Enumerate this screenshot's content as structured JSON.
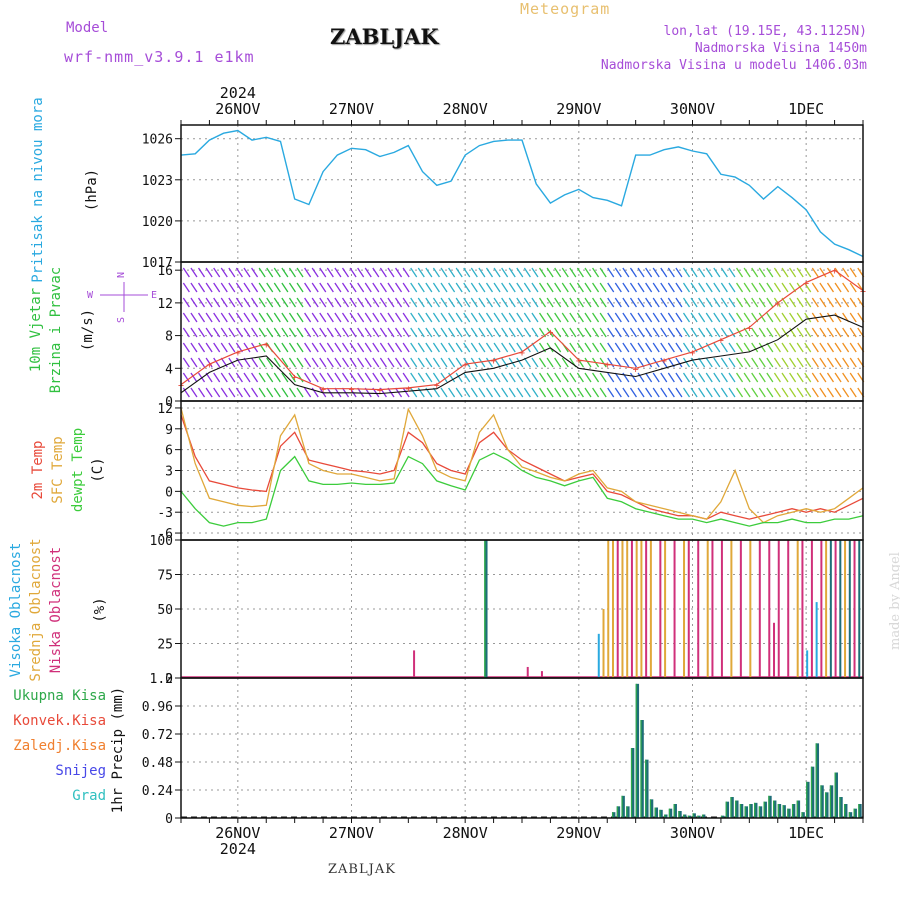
{
  "header": {
    "model_label": "Model",
    "model_name": "wrf-nmm_v3.9.1  e1km",
    "station_title": "ZABLJAK",
    "meteogram_label": "Meteogram",
    "lonlat": "lon,lat (19.15E, 43.1125N)",
    "elevation": "Nadmorska Visina 1450m",
    "elevation_model": "Nadmorska Visina u modelu 1406.03m",
    "footer_station": "ZABLJAK",
    "credit": "made by Angel"
  },
  "time_axis": {
    "top_year": "2024",
    "bottom_year": "2024",
    "day_labels": [
      "26NOV",
      "27NOV",
      "28NOV",
      "29NOV",
      "30NOV",
      "1DEC"
    ],
    "day_positions_hours": [
      12,
      36,
      60,
      84,
      108,
      132
    ],
    "range_hours": [
      0,
      144
    ]
  },
  "colors": {
    "pressure": "#2aa9e0",
    "temp2m": "#e84a3a",
    "sfc_temp": "#e0a83a",
    "dewpoint": "#3ccc3c",
    "high_cloud": "#2aa9e0",
    "mid_cloud": "#e0a83a",
    "low_cloud": "#d0307a",
    "total_precip": "#2ea84a",
    "conv_precip": "#e84a3a",
    "frozen_precip": "#f08030",
    "snow": "#4848e8",
    "graupel": "#30c0c0",
    "precip_bar": "#1e6e78",
    "gust": "#e84a3a",
    "wind_speed": "#111111"
  },
  "chart_data": [
    {
      "type": "line",
      "ylabel_title": "Pritisak na nivou mora",
      "ylabel_unit": "(hPa)",
      "ylim": [
        1017,
        1027
      ],
      "yticks": [
        1017,
        1020,
        1023,
        1026
      ],
      "grid": true,
      "series": [
        {
          "color_key": "pressure",
          "x": [
            0,
            3,
            6,
            9,
            12,
            15,
            18,
            21,
            24,
            27,
            30,
            33,
            36,
            39,
            42,
            45,
            48,
            51,
            54,
            57,
            60,
            63,
            66,
            69,
            72,
            75,
            78,
            81,
            84,
            87,
            90,
            93,
            96,
            99,
            102,
            105,
            108,
            111,
            114,
            117,
            120,
            123,
            126,
            129,
            132,
            135,
            138,
            141,
            144
          ],
          "values": [
            1024.8,
            1024.9,
            1025.9,
            1026.4,
            1026.6,
            1025.9,
            1026.1,
            1025.8,
            1021.6,
            1021.2,
            1023.6,
            1024.8,
            1025.3,
            1025.2,
            1024.7,
            1025.0,
            1025.5,
            1023.6,
            1022.6,
            1022.9,
            1024.8,
            1025.5,
            1025.8,
            1025.9,
            1025.9,
            1022.7,
            1021.3,
            1021.9,
            1022.3,
            1021.7,
            1021.5,
            1021.1,
            1024.8,
            1024.8,
            1025.2,
            1025.4,
            1025.1,
            1024.9,
            1023.4,
            1023.2,
            1022.6,
            1021.6,
            1022.5,
            1021.7,
            1020.8,
            1019.2,
            1018.3,
            1017.9,
            1017.4
          ]
        }
      ]
    },
    {
      "type": "line",
      "ylabel_title": "10m Vjetar",
      "ylabel_subtitle": "Brzina i Pravac",
      "ylabel_unit": "(m/s)",
      "direction_legend": [
        "N",
        "W",
        "E",
        "S"
      ],
      "ylim": [
        0,
        17
      ],
      "yticks": [
        0,
        4,
        8,
        12,
        16
      ],
      "grid": true,
      "series": [
        {
          "color_key": "gust",
          "x": [
            0,
            6,
            12,
            18,
            24,
            30,
            36,
            42,
            48,
            54,
            60,
            66,
            72,
            78,
            84,
            90,
            96,
            102,
            108,
            114,
            120,
            126,
            132,
            138,
            144
          ],
          "values": [
            2.0,
            4.5,
            6.0,
            7.0,
            3.0,
            1.5,
            1.5,
            1.4,
            1.6,
            2.0,
            4.5,
            5.0,
            6.0,
            8.5,
            5.0,
            4.5,
            4.0,
            5.0,
            6.0,
            7.5,
            9.0,
            12.0,
            14.5,
            16.0,
            13.5
          ]
        },
        {
          "color_key": "wind_speed",
          "x": [
            0,
            6,
            12,
            18,
            24,
            30,
            36,
            42,
            48,
            54,
            60,
            66,
            72,
            78,
            84,
            90,
            96,
            102,
            108,
            114,
            120,
            126,
            132,
            138,
            144
          ],
          "values": [
            1.0,
            3.5,
            5.0,
            5.5,
            2.0,
            1.0,
            1.0,
            0.9,
            1.2,
            1.5,
            3.5,
            4.0,
            5.0,
            6.5,
            4.0,
            3.5,
            3.0,
            4.0,
            5.0,
            5.5,
            6.0,
            7.5,
            10.0,
            10.5,
            9.0
          ]
        }
      ]
    },
    {
      "type": "line",
      "ylabel_lines": [
        "2m Temp",
        "SFC Temp",
        "dewpt Temp"
      ],
      "ylabel_unit": "(C)",
      "ylim": [
        -7,
        13
      ],
      "yticks": [
        -6,
        -3,
        0,
        3,
        6,
        9,
        12
      ],
      "grid": true,
      "series": [
        {
          "color_key": "temp2m",
          "x": [
            0,
            3,
            6,
            9,
            12,
            15,
            18,
            21,
            24,
            27,
            30,
            33,
            36,
            39,
            42,
            45,
            48,
            51,
            54,
            57,
            60,
            63,
            66,
            69,
            72,
            75,
            78,
            81,
            84,
            87,
            90,
            93,
            96,
            99,
            102,
            105,
            108,
            111,
            114,
            117,
            120,
            123,
            126,
            129,
            132,
            135,
            138,
            141,
            144
          ],
          "values": [
            11.0,
            5.0,
            1.5,
            1.0,
            0.5,
            0.2,
            0.0,
            6.5,
            8.5,
            4.5,
            4.0,
            3.5,
            3.0,
            2.8,
            2.5,
            3.0,
            8.5,
            7.0,
            4.0,
            3.0,
            2.5,
            7.0,
            8.5,
            6.0,
            4.5,
            3.5,
            2.5,
            1.5,
            2.0,
            2.5,
            0.0,
            -0.5,
            -1.5,
            -2.5,
            -3.0,
            -3.5,
            -3.5,
            -4.0,
            -3.0,
            -3.5,
            -4.0,
            -3.5,
            -3.0,
            -2.5,
            -3.0,
            -2.5,
            -3.0,
            -2.0,
            -1.0
          ]
        },
        {
          "color_key": "sfc_temp",
          "x": [
            0,
            3,
            6,
            9,
            12,
            15,
            18,
            21,
            24,
            27,
            30,
            33,
            36,
            39,
            42,
            45,
            48,
            51,
            54,
            57,
            60,
            63,
            66,
            69,
            72,
            75,
            78,
            81,
            84,
            87,
            90,
            93,
            96,
            99,
            102,
            105,
            108,
            111,
            114,
            117,
            120,
            123,
            126,
            129,
            132,
            135,
            138,
            141,
            144
          ],
          "values": [
            12.0,
            4.0,
            -1.0,
            -1.5,
            -2.0,
            -2.2,
            -2.0,
            8.0,
            11.0,
            4.0,
            3.0,
            2.5,
            2.5,
            2.0,
            1.5,
            1.8,
            11.8,
            8.0,
            3.0,
            2.0,
            1.5,
            8.5,
            11.0,
            6.0,
            3.5,
            2.8,
            2.0,
            1.5,
            2.5,
            3.0,
            0.5,
            0.0,
            -1.5,
            -2.0,
            -2.5,
            -3.0,
            -3.5,
            -4.0,
            -1.5,
            3.0,
            -2.5,
            -4.5,
            -3.5,
            -3.0,
            -2.5,
            -3.0,
            -2.5,
            -1.0,
            0.5
          ]
        },
        {
          "color_key": "dewpoint",
          "x": [
            0,
            3,
            6,
            9,
            12,
            15,
            18,
            21,
            24,
            27,
            30,
            33,
            36,
            39,
            42,
            45,
            48,
            51,
            54,
            57,
            60,
            63,
            66,
            69,
            72,
            75,
            78,
            81,
            84,
            87,
            90,
            93,
            96,
            99,
            102,
            105,
            108,
            111,
            114,
            117,
            120,
            123,
            126,
            129,
            132,
            135,
            138,
            141,
            144
          ],
          "values": [
            0.0,
            -2.5,
            -4.5,
            -5.0,
            -4.5,
            -4.5,
            -4.0,
            3.0,
            5.0,
            1.5,
            1.0,
            1.0,
            1.2,
            1.0,
            1.0,
            1.2,
            5.0,
            4.0,
            1.5,
            0.8,
            0.2,
            4.5,
            5.5,
            4.5,
            3.0,
            2.0,
            1.5,
            0.8,
            1.5,
            2.0,
            -1.0,
            -1.5,
            -2.5,
            -3.0,
            -3.5,
            -4.0,
            -4.0,
            -4.5,
            -4.0,
            -4.5,
            -5.0,
            -4.5,
            -4.5,
            -4.0,
            -4.5,
            -4.5,
            -4.0,
            -4.0,
            -3.5
          ]
        }
      ]
    },
    {
      "type": "bar",
      "ylabel_lines": [
        "Visoka Oblacnost",
        "Srednja Oblacnost",
        "Niska Oblacnost"
      ],
      "ylabel_unit": "(%)",
      "ylim": [
        0,
        100
      ],
      "yticks": [
        0,
        25,
        50,
        75,
        100
      ],
      "grid": true,
      "bars": [
        {
          "x": 49,
          "value": 20,
          "color_key": "low_cloud"
        },
        {
          "x": 64,
          "value": 100,
          "color_key": "total_precip"
        },
        {
          "x": 64.3,
          "value": 100,
          "color_key": "precip_bar"
        },
        {
          "x": 73,
          "value": 8,
          "color_key": "low_cloud"
        },
        {
          "x": 76,
          "value": 5,
          "color_key": "low_cloud"
        },
        {
          "x": 88,
          "value": 32,
          "color_key": "high_cloud"
        },
        {
          "x": 89,
          "value": 50,
          "color_key": "mid_cloud"
        },
        {
          "x": 90,
          "value": 100,
          "color_key": "mid_cloud"
        },
        {
          "x": 91,
          "value": 100,
          "color_key": "mid_cloud"
        },
        {
          "x": 92,
          "value": 100,
          "color_key": "low_cloud"
        },
        {
          "x": 93,
          "value": 100,
          "color_key": "mid_cloud"
        },
        {
          "x": 94,
          "value": 100,
          "color_key": "mid_cloud"
        },
        {
          "x": 95,
          "value": 100,
          "color_key": "low_cloud"
        },
        {
          "x": 96,
          "value": 100,
          "color_key": "mid_cloud"
        },
        {
          "x": 97,
          "value": 100,
          "color_key": "mid_cloud"
        },
        {
          "x": 98,
          "value": 100,
          "color_key": "low_cloud"
        },
        {
          "x": 99,
          "value": 100,
          "color_key": "mid_cloud"
        },
        {
          "x": 101,
          "value": 100,
          "color_key": "low_cloud"
        },
        {
          "x": 102,
          "value": 100,
          "color_key": "mid_cloud"
        },
        {
          "x": 104,
          "value": 100,
          "color_key": "low_cloud"
        },
        {
          "x": 106,
          "value": 100,
          "color_key": "mid_cloud"
        },
        {
          "x": 107,
          "value": 100,
          "color_key": "low_cloud"
        },
        {
          "x": 109,
          "value": 100,
          "color_key": "low_cloud"
        },
        {
          "x": 111,
          "value": 100,
          "color_key": "mid_cloud"
        },
        {
          "x": 112,
          "value": 100,
          "color_key": "low_cloud"
        },
        {
          "x": 114,
          "value": 100,
          "color_key": "low_cloud"
        },
        {
          "x": 116,
          "value": 100,
          "color_key": "mid_cloud"
        },
        {
          "x": 118,
          "value": 100,
          "color_key": "low_cloud"
        },
        {
          "x": 120,
          "value": 100,
          "color_key": "mid_cloud"
        },
        {
          "x": 122,
          "value": 100,
          "color_key": "low_cloud"
        },
        {
          "x": 124,
          "value": 100,
          "color_key": "low_cloud"
        },
        {
          "x": 125,
          "value": 40,
          "color_key": "low_cloud"
        },
        {
          "x": 126,
          "value": 100,
          "color_key": "low_cloud"
        },
        {
          "x": 128,
          "value": 100,
          "color_key": "low_cloud"
        },
        {
          "x": 130,
          "value": 100,
          "color_key": "mid_cloud"
        },
        {
          "x": 131,
          "value": 100,
          "color_key": "low_cloud"
        },
        {
          "x": 132,
          "value": 20,
          "color_key": "high_cloud"
        },
        {
          "x": 133,
          "value": 100,
          "color_key": "low_cloud"
        },
        {
          "x": 134,
          "value": 55,
          "color_key": "high_cloud"
        },
        {
          "x": 135,
          "value": 100,
          "color_key": "low_cloud"
        },
        {
          "x": 136,
          "value": 100,
          "color_key": "mid_cloud"
        },
        {
          "x": 137,
          "value": 100,
          "color_key": "precip_bar"
        },
        {
          "x": 138,
          "value": 100,
          "color_key": "low_cloud"
        },
        {
          "x": 139,
          "value": 100,
          "color_key": "precip_bar"
        },
        {
          "x": 140,
          "value": 100,
          "color_key": "mid_cloud"
        },
        {
          "x": 141,
          "value": 100,
          "color_key": "precip_bar"
        },
        {
          "x": 142,
          "value": 100,
          "color_key": "low_cloud"
        },
        {
          "x": 143,
          "value": 100,
          "color_key": "precip_bar"
        }
      ]
    },
    {
      "type": "bar",
      "legend": [
        "Ukupna  Kisa",
        "Konvek.Kisa",
        "Zaledj.Kisa",
        "Snijeg",
        "Grad"
      ],
      "ylabel_unit": "1hr Precip (mm)",
      "ylim": [
        0,
        1.2
      ],
      "yticks": [
        0,
        0.24,
        0.48,
        0.72,
        0.96,
        1.2
      ],
      "grid": true,
      "x": [
        91,
        92,
        93,
        94,
        95,
        96,
        97,
        98,
        99,
        100,
        101,
        102,
        103,
        104,
        105,
        106,
        107,
        108,
        109,
        110,
        114,
        115,
        116,
        117,
        118,
        119,
        120,
        121,
        122,
        123,
        124,
        125,
        126,
        127,
        128,
        129,
        130,
        131,
        132,
        133,
        134,
        135,
        136,
        137,
        138,
        139,
        140,
        141,
        142,
        143
      ],
      "values": [
        0.05,
        0.1,
        0.19,
        0.1,
        0.6,
        1.15,
        0.84,
        0.5,
        0.16,
        0.09,
        0.07,
        0.03,
        0.08,
        0.12,
        0.06,
        0.03,
        0.02,
        0.04,
        0.02,
        0.03,
        0.02,
        0.14,
        0.18,
        0.15,
        0.12,
        0.1,
        0.12,
        0.13,
        0.1,
        0.14,
        0.19,
        0.15,
        0.12,
        0.11,
        0.08,
        0.12,
        0.15,
        0.05,
        0.31,
        0.44,
        0.64,
        0.28,
        0.22,
        0.28,
        0.39,
        0.18,
        0.12,
        0.05,
        0.08,
        0.12
      ]
    }
  ]
}
